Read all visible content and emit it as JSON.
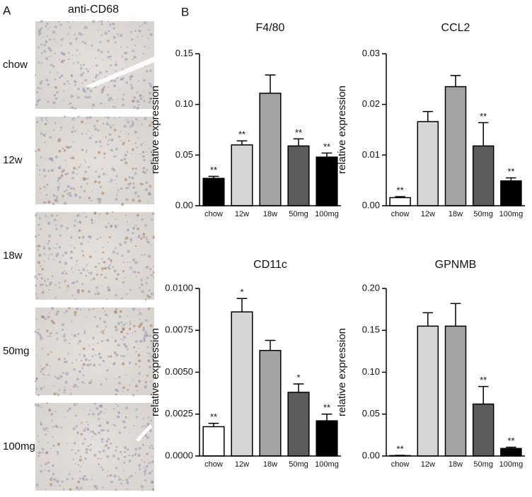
{
  "panel_a": {
    "label": "A",
    "title": "anti-CD68",
    "rows": [
      "chow",
      "12w",
      "18w",
      "50mg",
      "100mg"
    ]
  },
  "panel_b_label": "B",
  "chart_data": [
    {
      "type": "bar",
      "title": "F4/80",
      "y_label": "relative expression",
      "categories": [
        "chow",
        "12w",
        "18w",
        "50mg",
        "100mg"
      ],
      "values": [
        0.027,
        0.06,
        0.111,
        0.059,
        0.048
      ],
      "errors": [
        0.002,
        0.004,
        0.018,
        0.007,
        0.004
      ],
      "significance": [
        "**",
        "**",
        null,
        "**",
        "**"
      ],
      "colors": [
        "#000000",
        "#d6d6d6",
        "#a3a3a3",
        "#5c5c5c",
        "#000000"
      ],
      "ylim": [
        0,
        0.15
      ],
      "yticks": [
        {
          "value": 0,
          "label": "0.00"
        },
        {
          "value": 0.05,
          "label": "0.05"
        },
        {
          "value": 0.1,
          "label": "0.10"
        },
        {
          "value": 0.15,
          "label": "0.15"
        }
      ]
    },
    {
      "type": "bar",
      "title": "CCL2",
      "y_label": "relative expression",
      "categories": [
        "chow",
        "12w",
        "18w",
        "50mg",
        "100mg"
      ],
      "values": [
        0.0016,
        0.0166,
        0.0235,
        0.0118,
        0.0049
      ],
      "errors": [
        0.0002,
        0.002,
        0.0022,
        0.0046,
        0.0006
      ],
      "significance": [
        "**",
        null,
        null,
        "**",
        "**"
      ],
      "colors": [
        "#ffffff",
        "#d6d6d6",
        "#a3a3a3",
        "#5c5c5c",
        "#000000"
      ],
      "ylim": [
        0,
        0.03
      ],
      "yticks": [
        {
          "value": 0,
          "label": "0.00"
        },
        {
          "value": 0.01,
          "label": "0.01"
        },
        {
          "value": 0.02,
          "label": "0.02"
        },
        {
          "value": 0.03,
          "label": "0.03"
        }
      ]
    },
    {
      "type": "bar",
      "title": "CD11c",
      "y_label": "relative expression",
      "categories": [
        "chow",
        "12w",
        "18w",
        "50mg",
        "100mg"
      ],
      "values": [
        0.00175,
        0.0086,
        0.0063,
        0.0038,
        0.0021
      ],
      "errors": [
        0.0002,
        0.0008,
        0.0006,
        0.0005,
        0.0004
      ],
      "significance": [
        "**",
        "*",
        null,
        "*",
        "**"
      ],
      "colors": [
        "#ffffff",
        "#d6d6d6",
        "#a3a3a3",
        "#5c5c5c",
        "#000000"
      ],
      "ylim": [
        0,
        0.01
      ],
      "yticks": [
        {
          "value": 0,
          "label": "0.0000"
        },
        {
          "value": 0.0025,
          "label": "0.0025"
        },
        {
          "value": 0.005,
          "label": "0.0050"
        },
        {
          "value": 0.0075,
          "label": "0.0075"
        },
        {
          "value": 0.01,
          "label": "0.0100"
        }
      ]
    },
    {
      "type": "bar",
      "title": "GPNMB",
      "y_label": "relative expression",
      "categories": [
        "chow",
        "12w",
        "18w",
        "50mg",
        "100mg"
      ],
      "values": [
        0.0005,
        0.155,
        0.155,
        0.062,
        0.009
      ],
      "errors": [
        0.0003,
        0.016,
        0.027,
        0.021,
        0.0015
      ],
      "significance": [
        "**",
        null,
        null,
        "**",
        "**"
      ],
      "colors": [
        "#ffffff",
        "#d6d6d6",
        "#a3a3a3",
        "#5c5c5c",
        "#000000"
      ],
      "ylim": [
        0,
        0.2
      ],
      "yticks": [
        {
          "value": 0,
          "label": "0.00"
        },
        {
          "value": 0.05,
          "label": "0.05"
        },
        {
          "value": 0.1,
          "label": "0.10"
        },
        {
          "value": 0.15,
          "label": "0.15"
        },
        {
          "value": 0.2,
          "label": "0.20"
        }
      ]
    }
  ]
}
